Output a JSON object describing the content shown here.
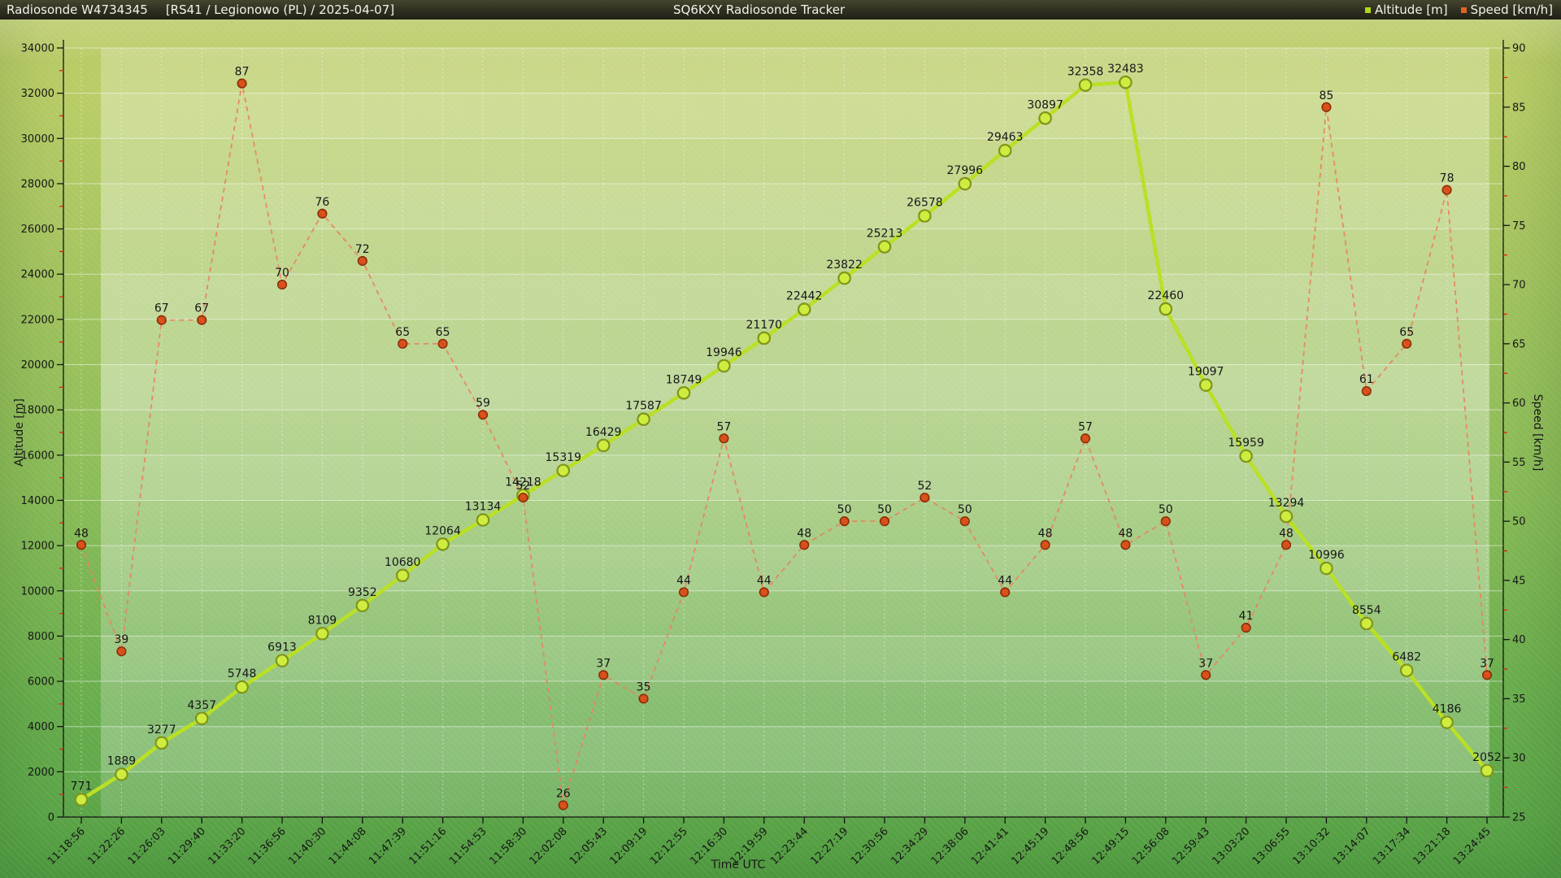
{
  "header": {
    "station_title": "Radiosonde W4734345",
    "flight_info": "[RS41 / Legionowo (PL) / 2025-04-07]",
    "app_title": "SQ6KXY Radiosonde Tracker",
    "legend": {
      "altitude_label": "Altitude [m]",
      "altitude_color": "#b2d916",
      "speed_label": "Speed [km/h]",
      "speed_color": "#e06321"
    }
  },
  "chart_data": {
    "type": "line",
    "title": "SQ6KXY Radiosonde Tracker",
    "xlabel": "Time UTC",
    "grid": true,
    "legend_position": "top-right-header",
    "x": [
      "11:18:56",
      "11:22:26",
      "11:26:03",
      "11:29:40",
      "11:33:20",
      "11:36:56",
      "11:40:30",
      "11:44:08",
      "11:47:39",
      "11:51:16",
      "11:54:53",
      "11:58:30",
      "12:02:08",
      "12:05:43",
      "12:09:19",
      "12:12:55",
      "12:16:30",
      "12:19:59",
      "12:23:44",
      "12:27:19",
      "12:30:56",
      "12:34:29",
      "12:38:06",
      "12:41:41",
      "12:45:19",
      "12:48:56",
      "12:49:15",
      "12:56:08",
      "12:59:43",
      "13:03:20",
      "13:06:55",
      "13:10:32",
      "13:14:07",
      "13:17:34",
      "13:21:18",
      "13:24:45"
    ],
    "left_axis": {
      "label": "Altitude [m]",
      "min": 0,
      "max": 34000,
      "tick_step": 2000,
      "minor_step": 1000
    },
    "right_axis": {
      "label": "Speed [km/h]",
      "min": 25,
      "max": 90,
      "tick_step": 5,
      "minor_step": 2.5
    },
    "series": [
      {
        "name": "Altitude [m]",
        "axis": "left",
        "style": "solid",
        "color": "#b9e021",
        "marker_fill": "#cdec3c",
        "marker_stroke": "#7e9418",
        "values": [
          771,
          1889,
          3277,
          4357,
          5748,
          6913,
          8109,
          9352,
          10680,
          12064,
          13134,
          14218,
          15319,
          16429,
          17587,
          18749,
          19946,
          21170,
          22442,
          23822,
          25213,
          26578,
          27996,
          29463,
          30897,
          32358,
          32483,
          22460,
          19097,
          15959,
          13294,
          10996,
          8554,
          6482,
          4186,
          2052
        ]
      },
      {
        "name": "Speed [km/h]",
        "axis": "right",
        "style": "dashed",
        "color": "#e8845c",
        "marker_fill": "#d84e17",
        "marker_stroke": "#8a2d08",
        "values": [
          48,
          39,
          67,
          67,
          87,
          70,
          76,
          72,
          65,
          65,
          59,
          52,
          26,
          37,
          35,
          44,
          57,
          44,
          48,
          50,
          50,
          52,
          50,
          44,
          48,
          57,
          48,
          50,
          37,
          41,
          48,
          85,
          61,
          65,
          78,
          37
        ]
      }
    ]
  }
}
